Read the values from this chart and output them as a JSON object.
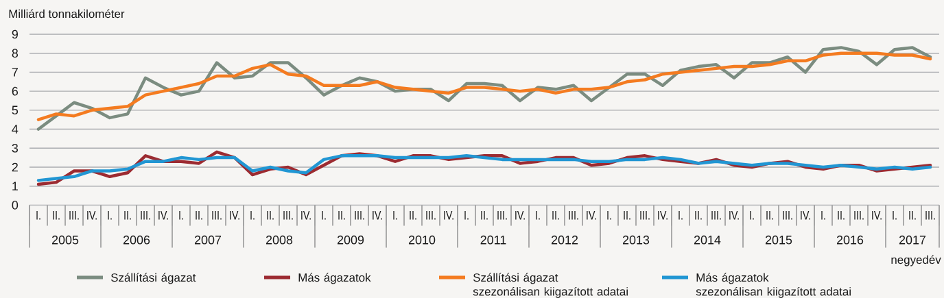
{
  "chart_data": {
    "type": "line",
    "ylabel": "Milliárd tonnakilométer",
    "xlabel": "negyedév",
    "categories": [
      "I.",
      "II.",
      "III.",
      "IV.",
      "I.",
      "II.",
      "III.",
      "IV.",
      "I.",
      "II.",
      "III.",
      "IV.",
      "I.",
      "II.",
      "III.",
      "IV.",
      "I.",
      "II.",
      "III.",
      "IV.",
      "I.",
      "II.",
      "III.",
      "IV.",
      "I.",
      "II.",
      "III.",
      "IV.",
      "I.",
      "II.",
      "III.",
      "IV.",
      "I.",
      "II.",
      "III.",
      "IV.",
      "I.",
      "II.",
      "III.",
      "IV.",
      "I.",
      "II.",
      "III.",
      "IV.",
      "I.",
      "II.",
      "III.",
      "IV.",
      "I.",
      "II.",
      "III."
    ],
    "annotations": [
      "2005",
      "2006",
      "2007",
      "2008",
      "2009",
      "2010",
      "2011",
      "2012",
      "2013",
      "2014",
      "2015",
      "2016",
      "2017"
    ],
    "series": [
      {
        "name": "Szállítási ágazat",
        "color": "#7b8c80",
        "values": [
          4.0,
          4.7,
          5.4,
          5.1,
          4.6,
          4.8,
          6.7,
          6.2,
          5.8,
          6.0,
          7.5,
          6.7,
          6.8,
          7.5,
          7.5,
          6.7,
          5.8,
          6.3,
          6.7,
          6.5,
          6.0,
          6.1,
          6.1,
          5.5,
          6.4,
          6.4,
          6.3,
          5.5,
          6.2,
          6.1,
          6.3,
          5.5,
          6.2,
          6.9,
          6.9,
          6.3,
          7.1,
          7.3,
          7.4,
          6.7,
          7.5,
          7.5,
          7.8,
          7.0,
          8.2,
          8.3,
          8.1,
          7.4,
          8.2,
          8.3,
          7.8
        ]
      },
      {
        "name": "Más ágazatok",
        "color": "#9c2b31",
        "values": [
          1.1,
          1.2,
          1.8,
          1.8,
          1.5,
          1.7,
          2.6,
          2.3,
          2.3,
          2.2,
          2.8,
          2.5,
          1.6,
          1.9,
          2.0,
          1.6,
          2.1,
          2.6,
          2.7,
          2.6,
          2.3,
          2.6,
          2.6,
          2.4,
          2.5,
          2.6,
          2.6,
          2.2,
          2.3,
          2.5,
          2.5,
          2.1,
          2.2,
          2.5,
          2.6,
          2.4,
          2.3,
          2.2,
          2.4,
          2.1,
          2.0,
          2.2,
          2.3,
          2.0,
          1.9,
          2.1,
          2.1,
          1.8,
          1.9,
          2.0,
          2.1
        ]
      },
      {
        "name": "Szállítási ágazat szezonálisan kiigazított adatai",
        "color": "#f47b20",
        "values": [
          4.5,
          4.8,
          4.7,
          5.0,
          5.1,
          5.2,
          5.8,
          6.0,
          6.2,
          6.4,
          6.8,
          6.8,
          7.2,
          7.4,
          6.9,
          6.8,
          6.3,
          6.3,
          6.3,
          6.5,
          6.2,
          6.1,
          6.0,
          5.9,
          6.2,
          6.2,
          6.1,
          6.0,
          6.1,
          5.9,
          6.1,
          6.1,
          6.2,
          6.5,
          6.6,
          6.9,
          7.0,
          7.1,
          7.2,
          7.3,
          7.3,
          7.4,
          7.6,
          7.6,
          7.9,
          8.0,
          8.0,
          8.0,
          7.9,
          7.9,
          7.7
        ]
      },
      {
        "name": "Más ágazatok szezonálisan kiigazított adatai",
        "color": "#2196d3",
        "values": [
          1.3,
          1.4,
          1.5,
          1.8,
          1.8,
          1.9,
          2.3,
          2.3,
          2.5,
          2.4,
          2.5,
          2.5,
          1.8,
          2.0,
          1.8,
          1.7,
          2.4,
          2.6,
          2.6,
          2.6,
          2.5,
          2.5,
          2.5,
          2.5,
          2.6,
          2.5,
          2.4,
          2.4,
          2.4,
          2.4,
          2.4,
          2.3,
          2.3,
          2.4,
          2.4,
          2.5,
          2.4,
          2.2,
          2.3,
          2.2,
          2.1,
          2.2,
          2.2,
          2.1,
          2.0,
          2.1,
          2.0,
          1.9,
          2.0,
          1.9,
          2.0
        ]
      }
    ],
    "ylim": [
      0,
      9
    ],
    "yticks": [
      0,
      1,
      2,
      3,
      4,
      5,
      6,
      7,
      8,
      9
    ],
    "grid": "y",
    "legend": "bottom"
  }
}
